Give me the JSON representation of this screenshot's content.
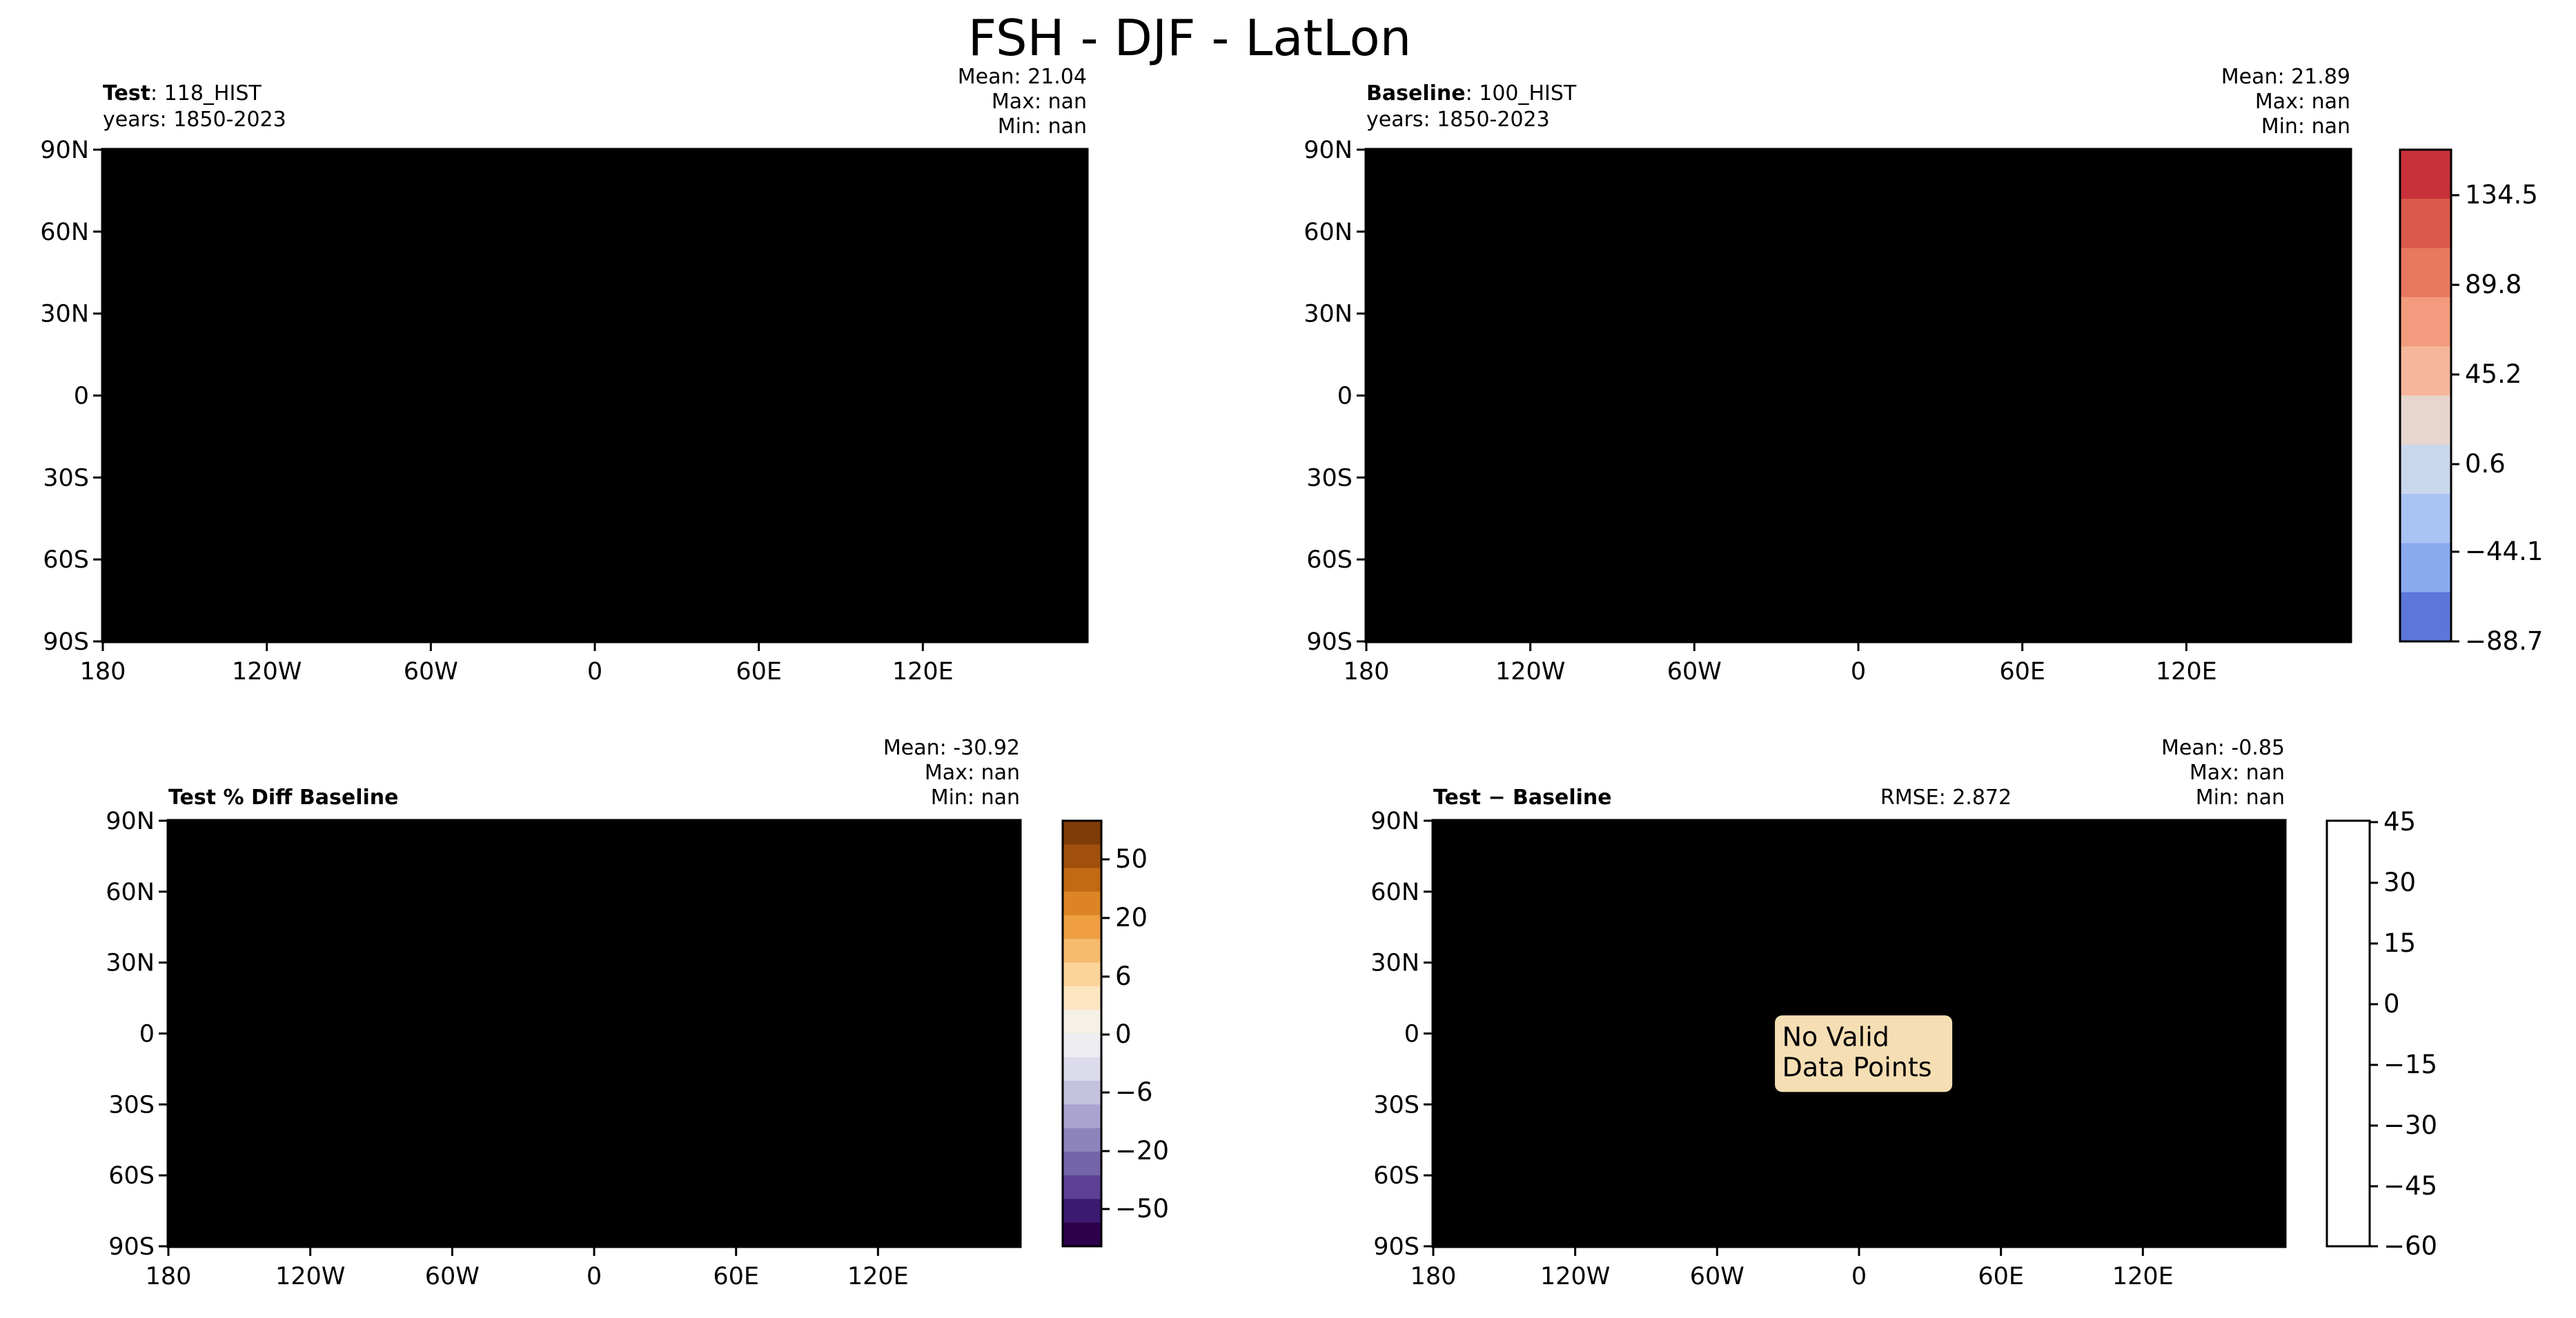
{
  "figure": {
    "title": "FSH - DJF - LatLon"
  },
  "chart_data": [
    {
      "id": "test",
      "type": "heatmap",
      "title_bold": "Test",
      "title_rest": ": 118_HIST",
      "subtitle": "years: 1850-2023",
      "stats": [
        "Mean: 21.04",
        "Max:   nan",
        "Min:   nan"
      ],
      "lat_ticks": [
        "90N",
        "60N",
        "30N",
        "0",
        "30S",
        "60S",
        "90S"
      ],
      "lon_ticks": [
        "180",
        "120W",
        "60W",
        "0",
        "60E",
        "120E"
      ],
      "xlim": [
        -180,
        180
      ],
      "ylim": [
        -90,
        90
      ],
      "colormap": "coolwarm"
    },
    {
      "id": "baseline",
      "type": "heatmap",
      "title_bold": "Baseline",
      "title_rest": ": 100_HIST",
      "subtitle": "years: 1850-2023",
      "stats": [
        "Mean: 21.89",
        "Max:   nan",
        "Min:   nan"
      ],
      "lat_ticks": [
        "90N",
        "60N",
        "30N",
        "0",
        "30S",
        "60S",
        "90S"
      ],
      "lon_ticks": [
        "180",
        "120W",
        "60W",
        "0",
        "60E",
        "120E"
      ],
      "xlim": [
        -180,
        180
      ],
      "ylim": [
        -90,
        90
      ],
      "colorbar": {
        "tick_labels": [
          "134.5",
          "89.8",
          "45.2",
          "0.6",
          "−44.1",
          "−88.7"
        ],
        "colors": [
          "#c8303a",
          "#d95a4b",
          "#e87860",
          "#f39b7e",
          "#f5b69b",
          "#e7d6cd",
          "#c9d7ec",
          "#a9c4f4",
          "#8aaaf0",
          "#5c76d9"
        ]
      }
    },
    {
      "id": "pctdiff",
      "type": "heatmap",
      "title_bold": "Test % Diff Baseline",
      "stats": [
        "Mean: -30.92",
        "Max:   nan",
        "Min:   nan"
      ],
      "lat_ticks": [
        "90N",
        "60N",
        "30N",
        "0",
        "30S",
        "60S",
        "90S"
      ],
      "lon_ticks": [
        "180",
        "120W",
        "60W",
        "0",
        "60E",
        "120E"
      ],
      "xlim": [
        -180,
        180
      ],
      "ylim": [
        -90,
        90
      ],
      "colorbar": {
        "tick_labels": [
          "50",
          "20",
          "6",
          "0",
          "−6",
          "−20",
          "−50"
        ],
        "colors": [
          "#7f3b08",
          "#a0500c",
          "#c06a13",
          "#dd8526",
          "#ef9f42",
          "#f6bb6d",
          "#fbd49a",
          "#fde5c2",
          "#f7f0e6",
          "#eeedf2",
          "#dcdbeb",
          "#c5c2df",
          "#aaa3cf",
          "#8e84bc",
          "#7464a8",
          "#5b4093",
          "#3d1a71",
          "#2d004b"
        ]
      }
    },
    {
      "id": "diff",
      "type": "heatmap",
      "title_bold": "Test",
      "title_rest": " − Baseline",
      "rmse": "RMSE: 2.872",
      "stats": [
        "Mean: -0.85",
        "Max:   nan",
        "Min:   nan"
      ],
      "annotation": [
        "No Valid",
        "Data Points"
      ],
      "lat_ticks": [
        "90N",
        "60N",
        "30N",
        "0",
        "30S",
        "60S",
        "90S"
      ],
      "lon_ticks": [
        "180",
        "120W",
        "60W",
        "0",
        "60E",
        "120E"
      ],
      "xlim": [
        -180,
        180
      ],
      "ylim": [
        -90,
        90
      ],
      "colorbar": {
        "tick_labels": [
          "45",
          "30",
          "15",
          "0",
          "−15",
          "−30",
          "−45",
          "−60"
        ]
      }
    }
  ]
}
